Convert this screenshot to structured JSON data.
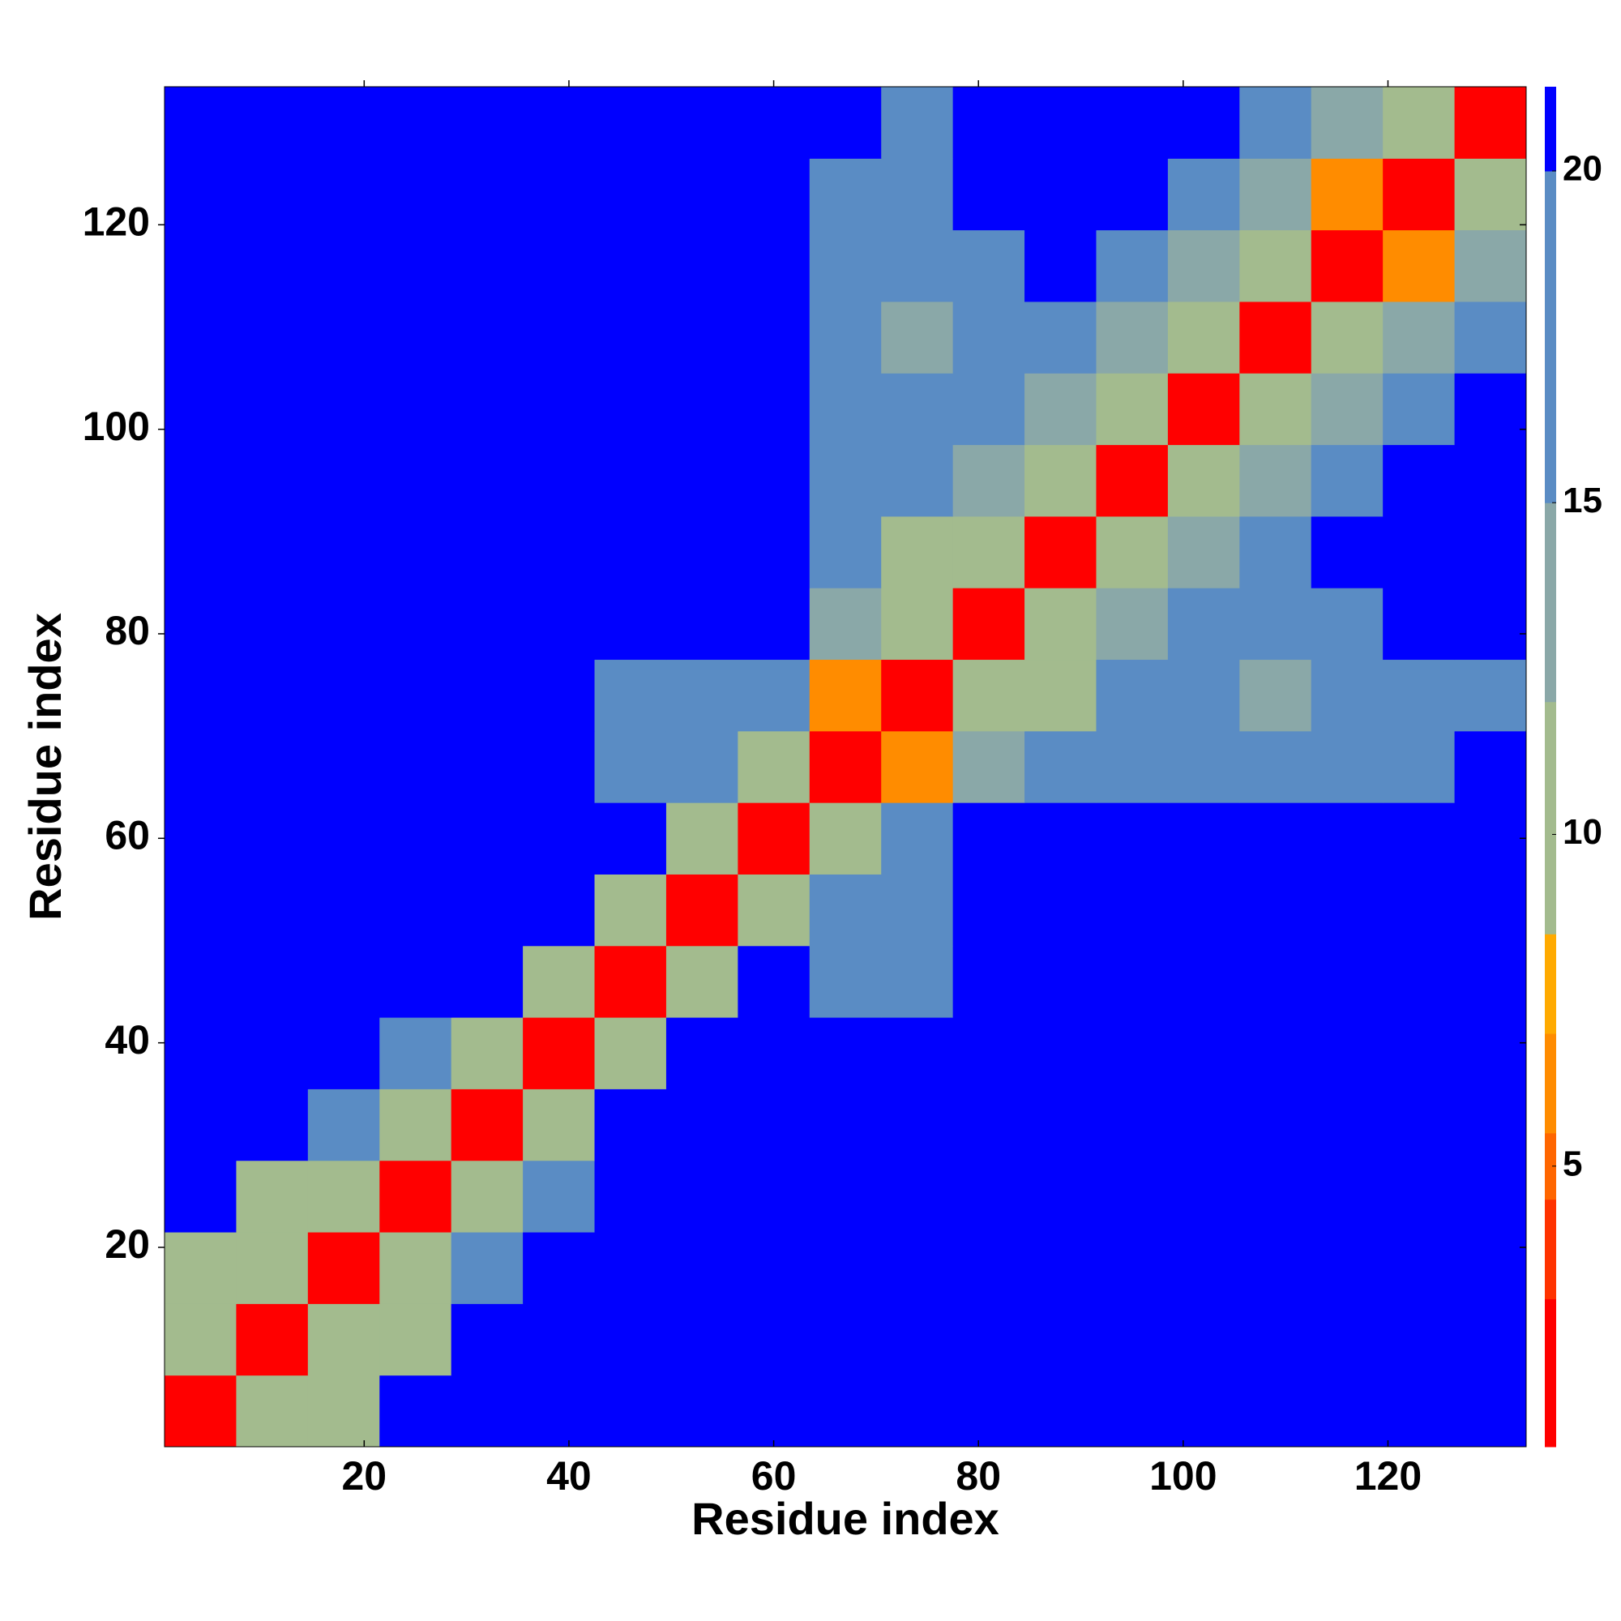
{
  "chart_data": {
    "type": "heatmap",
    "x_label": "Residue index",
    "y_label": "Residue index",
    "x": [
      4,
      11,
      18,
      25,
      32,
      39,
      46,
      53,
      60,
      67,
      74,
      81,
      88,
      95,
      102,
      109,
      116,
      123,
      130
    ],
    "y": [
      4,
      11,
      18,
      25,
      32,
      39,
      46,
      53,
      60,
      67,
      74,
      81,
      88,
      95,
      102,
      109,
      116,
      123,
      130
    ],
    "bin_width": 7,
    "z": [
      [
        2,
        11,
        12,
        21,
        21,
        21,
        21,
        21,
        21,
        21,
        21,
        21,
        21,
        21,
        21,
        21,
        21,
        21,
        21
      ],
      [
        11,
        2,
        11,
        12,
        21,
        21,
        21,
        21,
        21,
        21,
        21,
        21,
        21,
        21,
        21,
        21,
        21,
        21,
        21
      ],
      [
        12,
        11,
        2,
        11,
        16,
        21,
        21,
        21,
        21,
        21,
        21,
        21,
        21,
        21,
        21,
        21,
        21,
        21,
        21
      ],
      [
        21,
        12,
        11,
        2,
        11,
        19,
        21,
        21,
        21,
        21,
        21,
        21,
        21,
        21,
        21,
        21,
        21,
        21,
        21
      ],
      [
        21,
        21,
        16,
        11,
        2,
        12,
        21,
        21,
        21,
        21,
        21,
        21,
        21,
        21,
        21,
        21,
        21,
        21,
        21
      ],
      [
        21,
        21,
        21,
        19,
        12,
        2,
        12,
        21,
        21,
        21,
        21,
        21,
        21,
        21,
        21,
        21,
        21,
        21,
        21
      ],
      [
        21,
        21,
        21,
        21,
        21,
        12,
        2,
        12,
        21,
        18,
        17,
        21,
        21,
        21,
        21,
        21,
        21,
        21,
        21
      ],
      [
        21,
        21,
        21,
        21,
        21,
        21,
        12,
        2,
        11,
        18,
        17,
        21,
        21,
        21,
        21,
        21,
        21,
        21,
        21
      ],
      [
        21,
        21,
        21,
        21,
        21,
        21,
        21,
        11,
        2,
        11,
        16,
        21,
        21,
        21,
        21,
        21,
        21,
        21,
        21
      ],
      [
        21,
        21,
        21,
        21,
        21,
        21,
        18,
        18,
        11,
        2,
        7,
        14,
        19,
        19,
        19,
        16,
        19,
        19,
        21
      ],
      [
        21,
        21,
        21,
        21,
        21,
        21,
        17,
        17,
        16,
        7,
        2,
        10,
        12,
        18,
        18,
        15,
        17,
        17,
        19
      ],
      [
        21,
        21,
        21,
        21,
        21,
        21,
        21,
        21,
        21,
        14,
        10,
        2,
        9,
        13,
        19,
        18,
        19,
        21,
        21
      ],
      [
        21,
        21,
        21,
        21,
        21,
        21,
        21,
        21,
        21,
        19,
        12,
        9,
        2,
        10,
        15,
        17,
        21,
        21,
        21
      ],
      [
        21,
        21,
        21,
        21,
        21,
        21,
        21,
        21,
        21,
        19,
        18,
        13,
        10,
        2,
        10,
        14,
        16,
        21,
        21
      ],
      [
        21,
        21,
        21,
        21,
        21,
        21,
        21,
        21,
        21,
        19,
        18,
        19,
        15,
        10,
        2,
        11,
        15,
        16,
        21
      ],
      [
        21,
        21,
        21,
        21,
        21,
        21,
        21,
        21,
        21,
        16,
        15,
        18,
        17,
        14,
        11,
        2,
        11,
        14,
        16
      ],
      [
        21,
        21,
        21,
        21,
        21,
        21,
        21,
        21,
        21,
        19,
        17,
        19,
        21,
        16,
        15,
        11,
        2,
        7,
        14
      ],
      [
        21,
        21,
        21,
        21,
        21,
        21,
        21,
        21,
        21,
        19,
        17,
        21,
        21,
        21,
        16,
        14,
        7,
        2,
        10
      ],
      [
        21,
        21,
        21,
        21,
        21,
        21,
        21,
        21,
        21,
        21,
        19,
        21,
        21,
        21,
        21,
        16,
        14,
        10,
        2
      ]
    ],
    "xlim": [
      0.5,
      133.5
    ],
    "ylim": [
      0.5,
      133.5
    ],
    "xticks": [
      20,
      40,
      60,
      80,
      100,
      120
    ],
    "yticks": [
      20,
      40,
      60,
      80,
      100,
      120
    ],
    "zlim": [
      0.77,
      21.27
    ],
    "zticks": [
      5,
      10,
      15,
      20
    ],
    "levels": [
      3,
      4.5,
      5.5,
      7,
      8.5,
      12,
      15,
      20,
      21.27
    ],
    "colors": [
      "#ff0000",
      "#ff3300",
      "#ff6600",
      "#ff8c00",
      "#ffaa00",
      "#a3bb8e",
      "#8aa8a8",
      "#5a8cc4",
      "#0000ff"
    ]
  }
}
